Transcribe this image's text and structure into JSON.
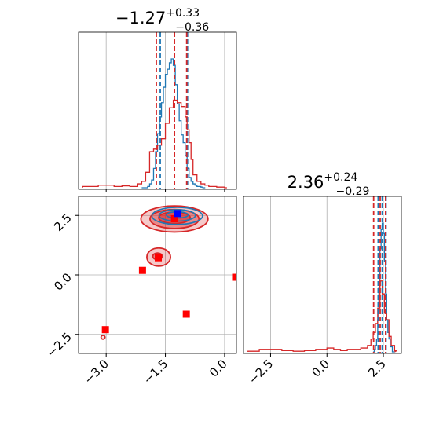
{
  "chart_data": {
    "type": "corner",
    "colors": {
      "blue": "#1f77b4",
      "red": "#d62728",
      "marker_red": "#ff0000",
      "marker_blue": "#0000ff",
      "grid": "#b0b0b0"
    },
    "grid": true,
    "panels": [
      {
        "id": "hist-param1",
        "type": "histogram",
        "title": {
          "median": "−1.27",
          "plus": "+0.33",
          "minus": "−0.36"
        },
        "xlim": [
          -3.7,
          0.3
        ],
        "xticks": [
          -3.0,
          -1.5,
          0.0
        ],
        "quantiles": {
          "blue": [
            -1.63,
            -1.27,
            -0.94
          ],
          "red": [
            -1.73,
            -1.27,
            -0.96
          ]
        },
        "series": [
          {
            "name": "",
            "color": "blue",
            "x": [
              -2.1,
              -1.95,
              -1.9,
              -1.85,
              -1.8,
              -1.75,
              -1.7,
              -1.65,
              -1.6,
              -1.55,
              -1.5,
              -1.45,
              -1.4,
              -1.35,
              -1.3,
              -1.25,
              -1.2,
              -1.15,
              -1.1,
              -1.05,
              -1.0,
              -0.95,
              -0.9,
              -0.85,
              -0.8,
              -0.75,
              -0.7,
              -0.65,
              -0.6,
              -0.55
            ],
            "y": [
              0,
              0.01,
              0.03,
              0.06,
              0.15,
              0.28,
              0.42,
              0.55,
              0.66,
              0.78,
              0.88,
              0.92,
              0.97,
              1.0,
              0.95,
              0.8,
              0.65,
              0.52,
              0.41,
              0.35,
              0.25,
              0.15,
              0.08,
              0.05,
              0.03,
              0.02,
              0.01,
              0.01,
              0.005,
              0
            ]
          },
          {
            "name": "",
            "color": "red",
            "x": [
              -3.6,
              -3.4,
              -3.2,
              -3.0,
              -2.8,
              -2.6,
              -2.4,
              -2.2,
              -2.1,
              -2.0,
              -1.9,
              -1.8,
              -1.7,
              -1.6,
              -1.5,
              -1.4,
              -1.3,
              -1.2,
              -1.1,
              -1.0,
              -0.95,
              -0.9,
              -0.85,
              -0.8,
              -0.7,
              -0.6,
              -0.5,
              -0.4,
              -0.2,
              0.0
            ],
            "y": [
              0.01,
              0.01,
              0.02,
              0.02,
              0.01,
              0.015,
              0.01,
              0.03,
              0.05,
              0.12,
              0.28,
              0.3,
              0.33,
              0.38,
              0.5,
              0.62,
              0.68,
              0.66,
              0.63,
              0.55,
              0.45,
              0.35,
              0.22,
              0.1,
              0.05,
              0.03,
              0.02,
              0.01,
              0.005,
              0
            ]
          }
        ]
      },
      {
        "id": "hist-param2",
        "type": "histogram",
        "title": {
          "median": "2.36",
          "plus": "+0.24",
          "minus": "−0.29"
        },
        "xlim": [
          -3.7,
          3.3
        ],
        "xticks": [
          -2.5,
          0.0,
          2.5
        ],
        "quantiles": {
          "blue": [
            2.27,
            2.45,
            2.62
          ],
          "red": [
            2.07,
            2.36,
            2.6
          ]
        },
        "series": [
          {
            "name": "",
            "color": "blue",
            "x": [
              2.05,
              2.1,
              2.15,
              2.2,
              2.25,
              2.3,
              2.35,
              2.4,
              2.45,
              2.5,
              2.55,
              2.6,
              2.65,
              2.7,
              2.75,
              2.8,
              2.9
            ],
            "y": [
              0,
              0.02,
              0.05,
              0.1,
              0.25,
              0.5,
              0.8,
              0.95,
              1.0,
              0.92,
              0.7,
              0.45,
              0.25,
              0.15,
              0.1,
              0.04,
              0
            ]
          },
          {
            "name": "",
            "color": "red",
            "x": [
              -3.5,
              -3.0,
              -2.5,
              -2.0,
              -1.5,
              -1.0,
              -0.5,
              0.0,
              0.3,
              0.6,
              0.9,
              1.2,
              1.5,
              1.8,
              1.95,
              2.05,
              2.15,
              2.25,
              2.35,
              2.45,
              2.55,
              2.65,
              2.75,
              2.85,
              3.0
            ],
            "y": [
              0.005,
              0.02,
              0.02,
              0.01,
              0.005,
              0.01,
              0.02,
              0.03,
              0.02,
              0.01,
              0.02,
              0.02,
              0.03,
              0.05,
              0.1,
              0.15,
              0.22,
              0.34,
              0.55,
              0.45,
              0.3,
              0.25,
              0.12,
              0.05,
              0.01
            ]
          }
        ]
      },
      {
        "id": "scatter-2d",
        "type": "contour",
        "xlim": [
          -3.7,
          0.3
        ],
        "ylim": [
          -3.3,
          3.3
        ],
        "xticks": [
          -3.0,
          -1.5,
          0.0
        ],
        "yticks": [
          -2.5,
          0.0,
          2.5
        ],
        "red_contours": [
          {
            "cx": -1.27,
            "cy": 2.35,
            "rx": 0.85,
            "ry": 0.55,
            "fill_opacity": 0.25
          },
          {
            "cx": -1.27,
            "cy": 2.35,
            "rx": 0.62,
            "ry": 0.4,
            "fill_opacity": 0.4
          },
          {
            "cx": -1.27,
            "cy": 2.4,
            "rx": 0.4,
            "ry": 0.24,
            "fill_opacity": 0.55
          },
          {
            "cx": -1.67,
            "cy": 0.75,
            "rx": 0.3,
            "ry": 0.38,
            "fill_opacity": 0.25
          },
          {
            "cx": -1.7,
            "cy": 0.78,
            "rx": 0.12,
            "ry": 0.14,
            "fill_opacity": 0.45
          },
          {
            "cx": -3.08,
            "cy": -2.62,
            "rx": 0.05,
            "ry": 0.08,
            "fill_opacity": 0.1
          }
        ],
        "blue_contours": [
          {
            "cx": -1.2,
            "cy": 2.48,
            "rx": 0.64,
            "ry": 0.36
          },
          {
            "cx": -1.2,
            "cy": 2.5,
            "rx": 0.46,
            "ry": 0.24
          },
          {
            "cx": -1.2,
            "cy": 2.52,
            "rx": 0.28,
            "ry": 0.13
          }
        ],
        "red_markers": [
          {
            "x": -1.27,
            "y": 2.36
          },
          {
            "x": -1.68,
            "y": 0.72
          },
          {
            "x": -2.08,
            "y": 0.19
          },
          {
            "x": -3.02,
            "y": -2.3
          },
          {
            "x": -0.97,
            "y": -1.65
          },
          {
            "x": 0.3,
            "y": -0.1
          }
        ],
        "blue_markers": [
          {
            "x": -1.2,
            "y": 2.58
          }
        ]
      }
    ]
  }
}
